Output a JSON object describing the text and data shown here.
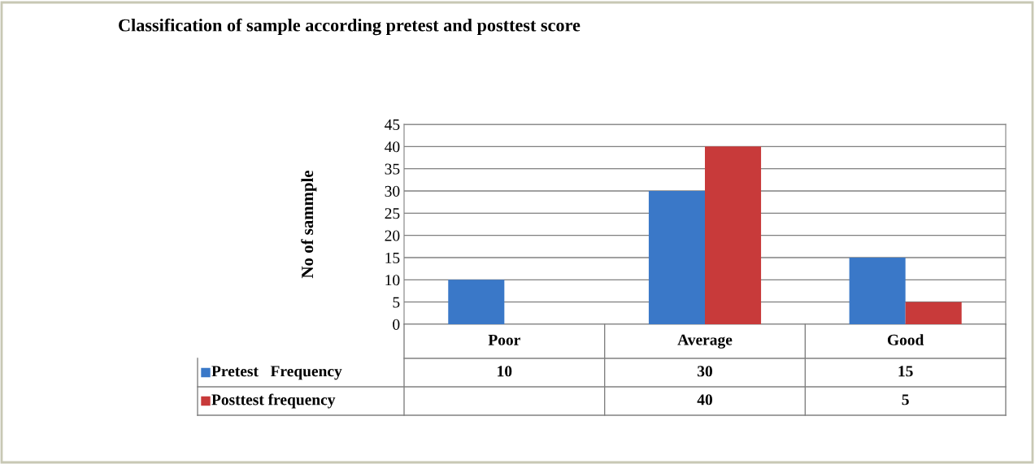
{
  "chart_data": {
    "type": "bar",
    "title": "Classification of sample according pretest and posttest score",
    "ylabel": "No of sammple",
    "categories": [
      "Poor",
      "Average",
      "Good"
    ],
    "series": [
      {
        "name": "Pretest   Frequency",
        "color": "#3a78c8",
        "values": [
          10,
          30,
          15
        ]
      },
      {
        "name": "Posttest frequency",
        "color": "#c83a3a",
        "values": [
          null,
          40,
          5
        ]
      }
    ],
    "ylim": [
      0,
      45
    ],
    "yticks": [
      0,
      5,
      10,
      15,
      20,
      25,
      30,
      35,
      40,
      45
    ],
    "grid": "y",
    "legend": "bottom left",
    "data_labels": true
  }
}
